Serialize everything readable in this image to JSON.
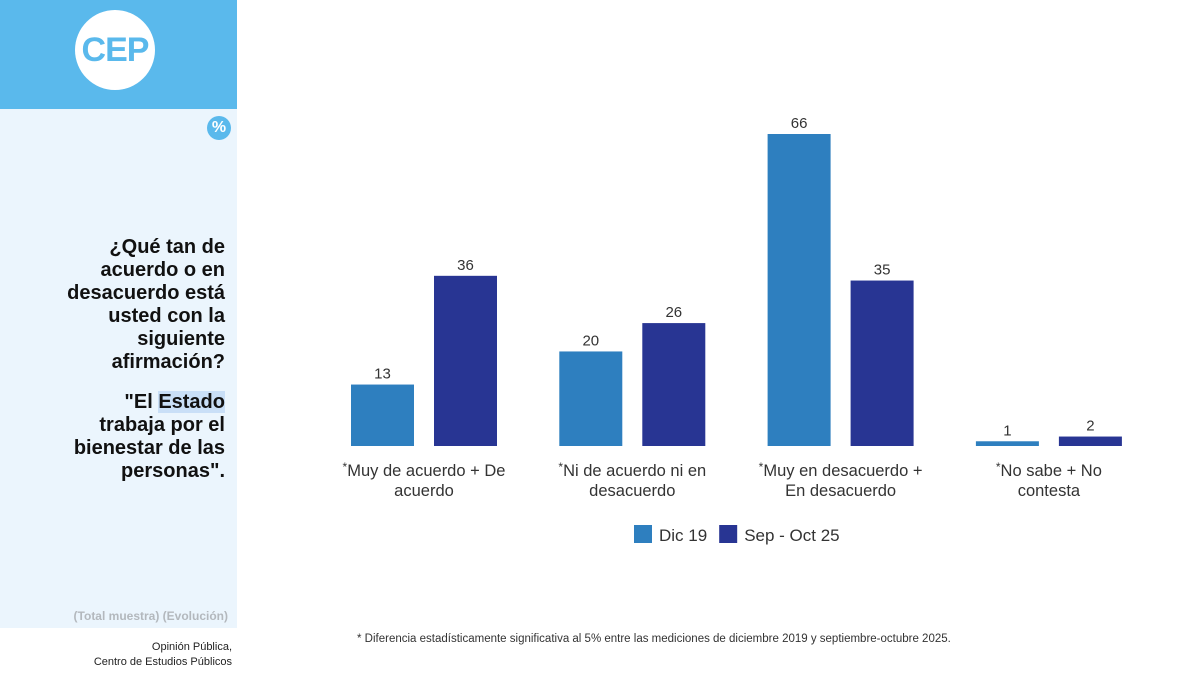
{
  "branding": {
    "logo_text": "CEP",
    "percent_symbol": "%"
  },
  "sidebar": {
    "question_lines": [
      "¿Qué tan de",
      "acuerdo o en",
      "desacuerdo está",
      "usted con la",
      "siguiente",
      "afirmación?"
    ],
    "statement_lines": [
      [
        "\"El ",
        "Estado"
      ],
      [
        "trabaja por el"
      ],
      [
        "bienestar de las"
      ],
      [
        "personas\"."
      ]
    ],
    "sample_note": "(Total muestra) (Evolución)",
    "source_line1": "Opinión Pública,",
    "source_line2": "Centro de Estudios Públicos"
  },
  "footnote": "* Diferencia estadísticamente significativa al 5% entre las mediciones de diciembre 2019 y septiembre-octubre 2025.",
  "colors": {
    "series1": "#2e7fbf",
    "series2": "#283593",
    "accent": "#5ab9ec",
    "sidebar_bg": "#ebf5fd"
  },
  "chart_data": {
    "type": "bar",
    "categories": [
      [
        "Muy de acuerdo + De",
        "acuerdo"
      ],
      [
        "Ni de acuerdo ni en",
        "desacuerdo"
      ],
      [
        "Muy en desacuerdo +",
        "En desacuerdo"
      ],
      [
        "No sabe + No",
        "contesta"
      ]
    ],
    "category_marker": "*",
    "series": [
      {
        "name": "Dic 19",
        "values": [
          13,
          20,
          66,
          1
        ]
      },
      {
        "name": "Sep - Oct 25",
        "values": [
          36,
          26,
          35,
          2
        ]
      }
    ],
    "ylim": [
      0,
      66
    ],
    "grid": false,
    "legend_position": "bottom"
  }
}
